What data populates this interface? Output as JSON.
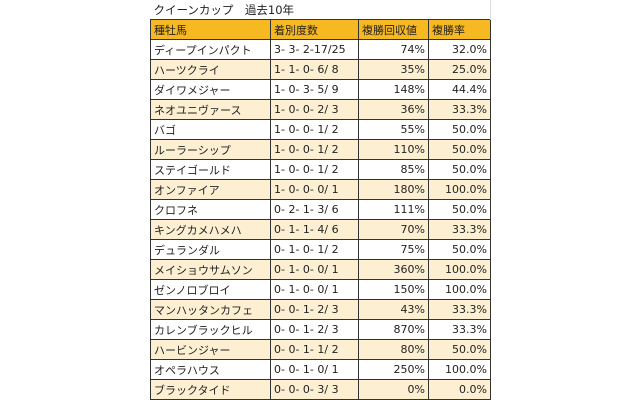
{
  "title": "クイーンカップ　過去10年",
  "headers": [
    "種牡馬",
    "着別度数",
    "複勝回収値",
    "複勝率"
  ],
  "rows": [
    [
      "ディープインパクト",
      "3- 3- 2-17/25",
      "74%",
      "32.0%"
    ],
    [
      "ハーツクライ",
      "1- 1- 0- 6/ 8",
      "35%",
      "25.0%"
    ],
    [
      "ダイワメジャー",
      "1- 0- 3- 5/ 9",
      "148%",
      "44.4%"
    ],
    [
      "ネオユニヴァース",
      "1- 0- 0- 2/ 3",
      "36%",
      "33.3%"
    ],
    [
      "バゴ",
      "1- 0- 0- 1/ 2",
      "55%",
      "50.0%"
    ],
    [
      "ルーラーシップ",
      "1- 0- 0- 1/ 2",
      "110%",
      "50.0%"
    ],
    [
      "ステイゴールド",
      "1- 0- 0- 1/ 2",
      "85%",
      "50.0%"
    ],
    [
      "オンファイア",
      "1- 0- 0- 0/ 1",
      "180%",
      "100.0%"
    ],
    [
      "クロフネ",
      "0- 2- 1- 3/ 6",
      "111%",
      "50.0%"
    ],
    [
      "キングカメハメハ",
      "0- 1- 1- 4/ 6",
      "70%",
      "33.3%"
    ],
    [
      "デュランダル",
      "0- 1- 0- 1/ 2",
      "75%",
      "50.0%"
    ],
    [
      "メイショウサムソン",
      "0- 1- 0- 0/ 1",
      "360%",
      "100.0%"
    ],
    [
      "ゼンノロブロイ",
      "0- 1- 0- 0/ 1",
      "150%",
      "100.0%"
    ],
    [
      "マンハッタンカフェ",
      "0- 0- 1- 2/ 3",
      "43%",
      "33.3%"
    ],
    [
      "カレンブラックヒル",
      "0- 0- 1- 2/ 3",
      "870%",
      "33.3%"
    ],
    [
      "ハービンジャー",
      "0- 0- 1- 1/ 2",
      "80%",
      "50.0%"
    ],
    [
      "オペラハウス",
      "0- 0- 1- 0/ 1",
      "250%",
      "100.0%"
    ],
    [
      "ブラックタイド",
      "0- 0- 0- 3/ 3",
      "0%",
      "0.0%"
    ]
  ]
}
